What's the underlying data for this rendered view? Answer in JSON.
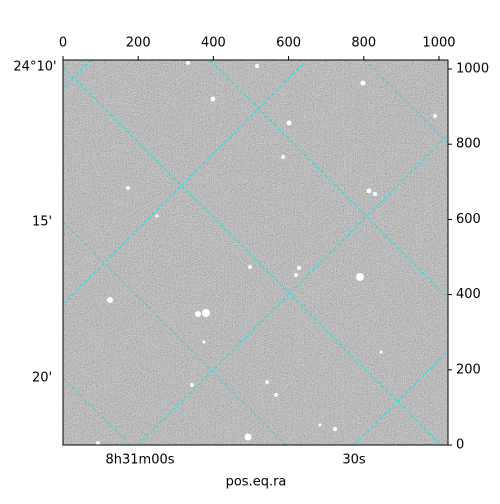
{
  "chart_data": {
    "type": "image",
    "xticks": [
      0,
      200,
      400,
      600,
      800,
      1000
    ],
    "xlim": [
      0,
      1024
    ],
    "yticks": [
      0,
      200,
      400,
      600,
      800,
      1000
    ],
    "ylim": [
      0,
      1024
    ],
    "dec_labels": [
      "24°10'",
      "15'",
      "20'"
    ],
    "ra_labels": [
      "8h31m00s",
      "30s"
    ],
    "xlabel": "pos.eq.ra"
  }
}
